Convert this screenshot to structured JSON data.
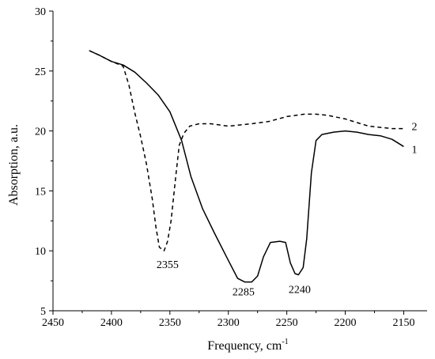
{
  "chart_data": {
    "type": "line",
    "title": "",
    "xlabel": "Frequency, cm",
    "xlabel_sup": "-1",
    "ylabel": "Absorption, a.u.",
    "xlim": [
      2450,
      2130
    ],
    "ylim": [
      5,
      30
    ],
    "x_reversed": true,
    "xticks": [
      2450,
      2400,
      2350,
      2300,
      2250,
      2200,
      2150
    ],
    "yticks": [
      5,
      10,
      15,
      20,
      25,
      30
    ],
    "xtick_labels": [
      "2450",
      "2400",
      "2350",
      "2300",
      "2250",
      "2200",
      "2150"
    ],
    "ytick_labels": [
      "5",
      "10",
      "15",
      "20",
      "25",
      "30"
    ],
    "grid": false,
    "series": [
      {
        "name": "1",
        "style": "solid",
        "color": "#000000",
        "x": [
          2419,
          2410,
          2400,
          2390,
          2380,
          2370,
          2360,
          2350,
          2340,
          2332,
          2322,
          2312,
          2300,
          2292,
          2286,
          2280,
          2275,
          2270,
          2264,
          2256,
          2251,
          2247,
          2243,
          2240,
          2236,
          2233,
          2229,
          2225,
          2220,
          2210,
          2200,
          2190,
          2180,
          2170,
          2160,
          2150
        ],
        "y": [
          26.7,
          26.3,
          25.8,
          25.5,
          24.9,
          24.0,
          23.0,
          21.6,
          19.2,
          16.2,
          13.5,
          11.5,
          9.2,
          7.7,
          7.4,
          7.4,
          7.9,
          9.5,
          10.7,
          10.8,
          10.7,
          9.0,
          8.1,
          8.0,
          8.6,
          11.0,
          16.5,
          19.2,
          19.7,
          19.9,
          20.0,
          19.9,
          19.7,
          19.6,
          19.3,
          18.7
        ]
      },
      {
        "name": "2",
        "style": "dashed",
        "color": "#000000",
        "x": [
          2419,
          2410,
          2400,
          2390,
          2385,
          2380,
          2375,
          2370,
          2365,
          2362,
          2359,
          2355,
          2352,
          2349,
          2345,
          2342,
          2338,
          2333,
          2325,
          2315,
          2300,
          2290,
          2280,
          2265,
          2250,
          2235,
          2225,
          2215,
          2200,
          2190,
          2180,
          2170,
          2160,
          2150
        ],
        "y": [
          26.7,
          26.3,
          25.8,
          25.4,
          23.8,
          21.5,
          19.5,
          17.2,
          14.3,
          12.0,
          10.3,
          10.0,
          10.8,
          12.5,
          16.2,
          18.8,
          19.8,
          20.4,
          20.6,
          20.6,
          20.4,
          20.5,
          20.6,
          20.8,
          21.2,
          21.4,
          21.4,
          21.3,
          21.0,
          20.7,
          20.4,
          20.3,
          20.2,
          20.2
        ]
      }
    ],
    "annotations": [
      {
        "text": "2355",
        "x": 2352,
        "y": 9.1
      },
      {
        "text": "2285",
        "x": 2287,
        "y": 6.8
      },
      {
        "text": "2240",
        "x": 2239,
        "y": 7.0
      }
    ]
  }
}
